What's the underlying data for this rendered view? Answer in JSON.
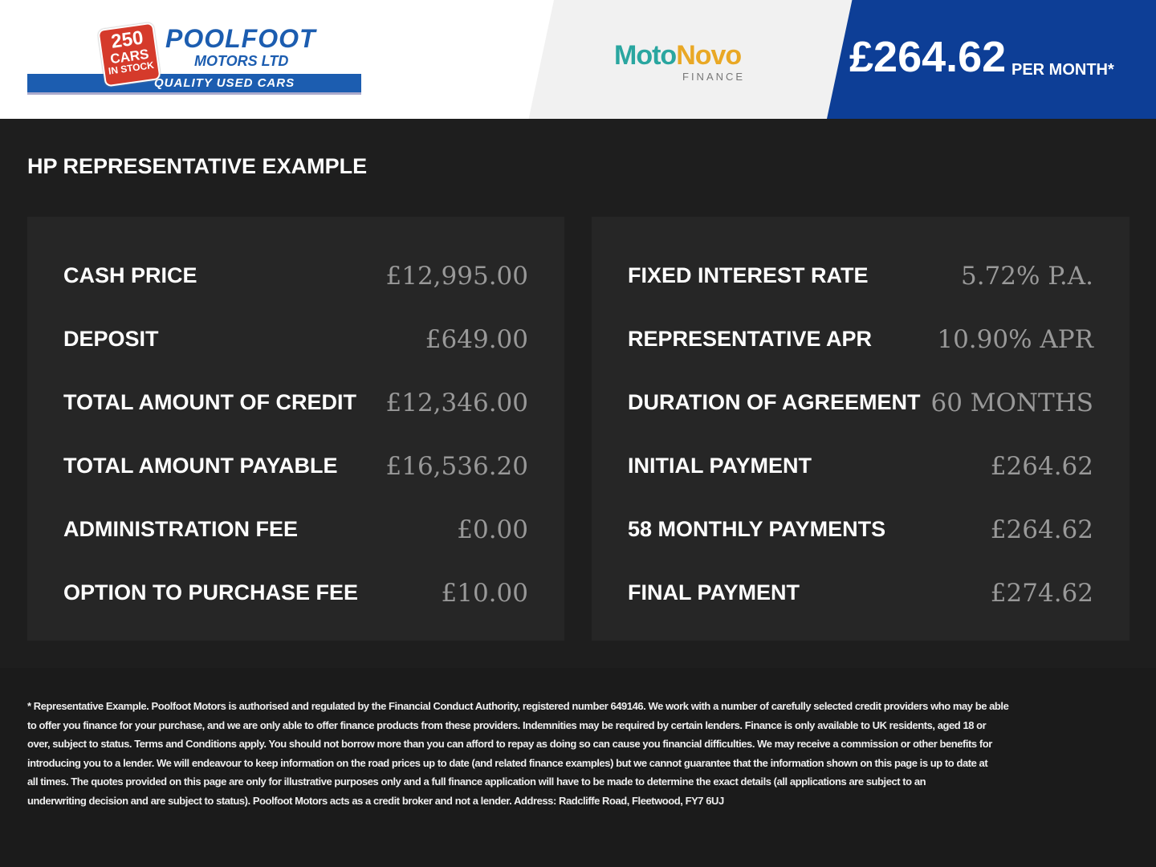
{
  "header": {
    "logo": {
      "badge_number": "250",
      "badge_cars": "CARS",
      "badge_stock": "IN STOCK",
      "name": "POOLFOOT",
      "subname": "MOTORS LTD",
      "tagline": "QUALITY USED CARS"
    },
    "finance_logo": {
      "part1": "Moto",
      "part2": "Novo",
      "sub": "FINANCE"
    },
    "monthly_price": "£264.62",
    "per_month": "PER MONTH*",
    "colors": {
      "blue": "#0d3e96",
      "dark": "#1e1e1e"
    }
  },
  "title": "HP REPRESENTATIVE EXAMPLE",
  "left": [
    {
      "label": "CASH PRICE",
      "value": "£12,995.00"
    },
    {
      "label": "DEPOSIT",
      "value": "£649.00"
    },
    {
      "label": "TOTAL AMOUNT OF CREDIT",
      "value": "£12,346.00"
    },
    {
      "label": "TOTAL AMOUNT PAYABLE",
      "value": "£16,536.20"
    },
    {
      "label": "ADMINISTRATION FEE",
      "value": "£0.00"
    },
    {
      "label": "OPTION TO PURCHASE FEE",
      "value": "£10.00"
    }
  ],
  "right": [
    {
      "label": "FIXED INTEREST RATE",
      "value": "5.72% P.A."
    },
    {
      "label": "REPRESENTATIVE APR",
      "value": "10.90% APR"
    },
    {
      "label": "DURATION OF AGREEMENT",
      "value": "60 MONTHS"
    },
    {
      "label": "INITIAL PAYMENT",
      "value": "£264.62"
    },
    {
      "label": "58 MONTHLY PAYMENTS",
      "value": "£264.62"
    },
    {
      "label": "FINAL PAYMENT",
      "value": "£274.62"
    }
  ],
  "disclaimer": [
    "* Representative Example. Poolfoot Motors is authorised and regulated by the Financial Conduct Authority, registered number 649146. We work with a number of carefully selected credit providers who may be able",
    "to offer you finance for your purchase, and we are only able to offer finance products from these providers. Indemnities may be required by certain lenders. Finance is only available to UK residents, aged 18 or",
    "over, subject to status. Terms and Conditions apply. You should not borrow more than you can afford to repay as doing so can cause you financial difficulties. We may receive a commission or other benefits for",
    "introducing you to a lender. We will endeavour to keep information on the road prices up to date (and related finance examples) but we cannot guarantee that the information shown on this page is up to date at",
    "all times. The quotes provided on this page are only for illustrative purposes only and a full finance application will have to be made to determine the exact details (all applications are subject to an",
    "underwriting decision and are subject to status). Poolfoot Motors acts as a credit broker and not a lender. Address: Radcliffe Road, Fleetwood, FY7 6UJ"
  ]
}
